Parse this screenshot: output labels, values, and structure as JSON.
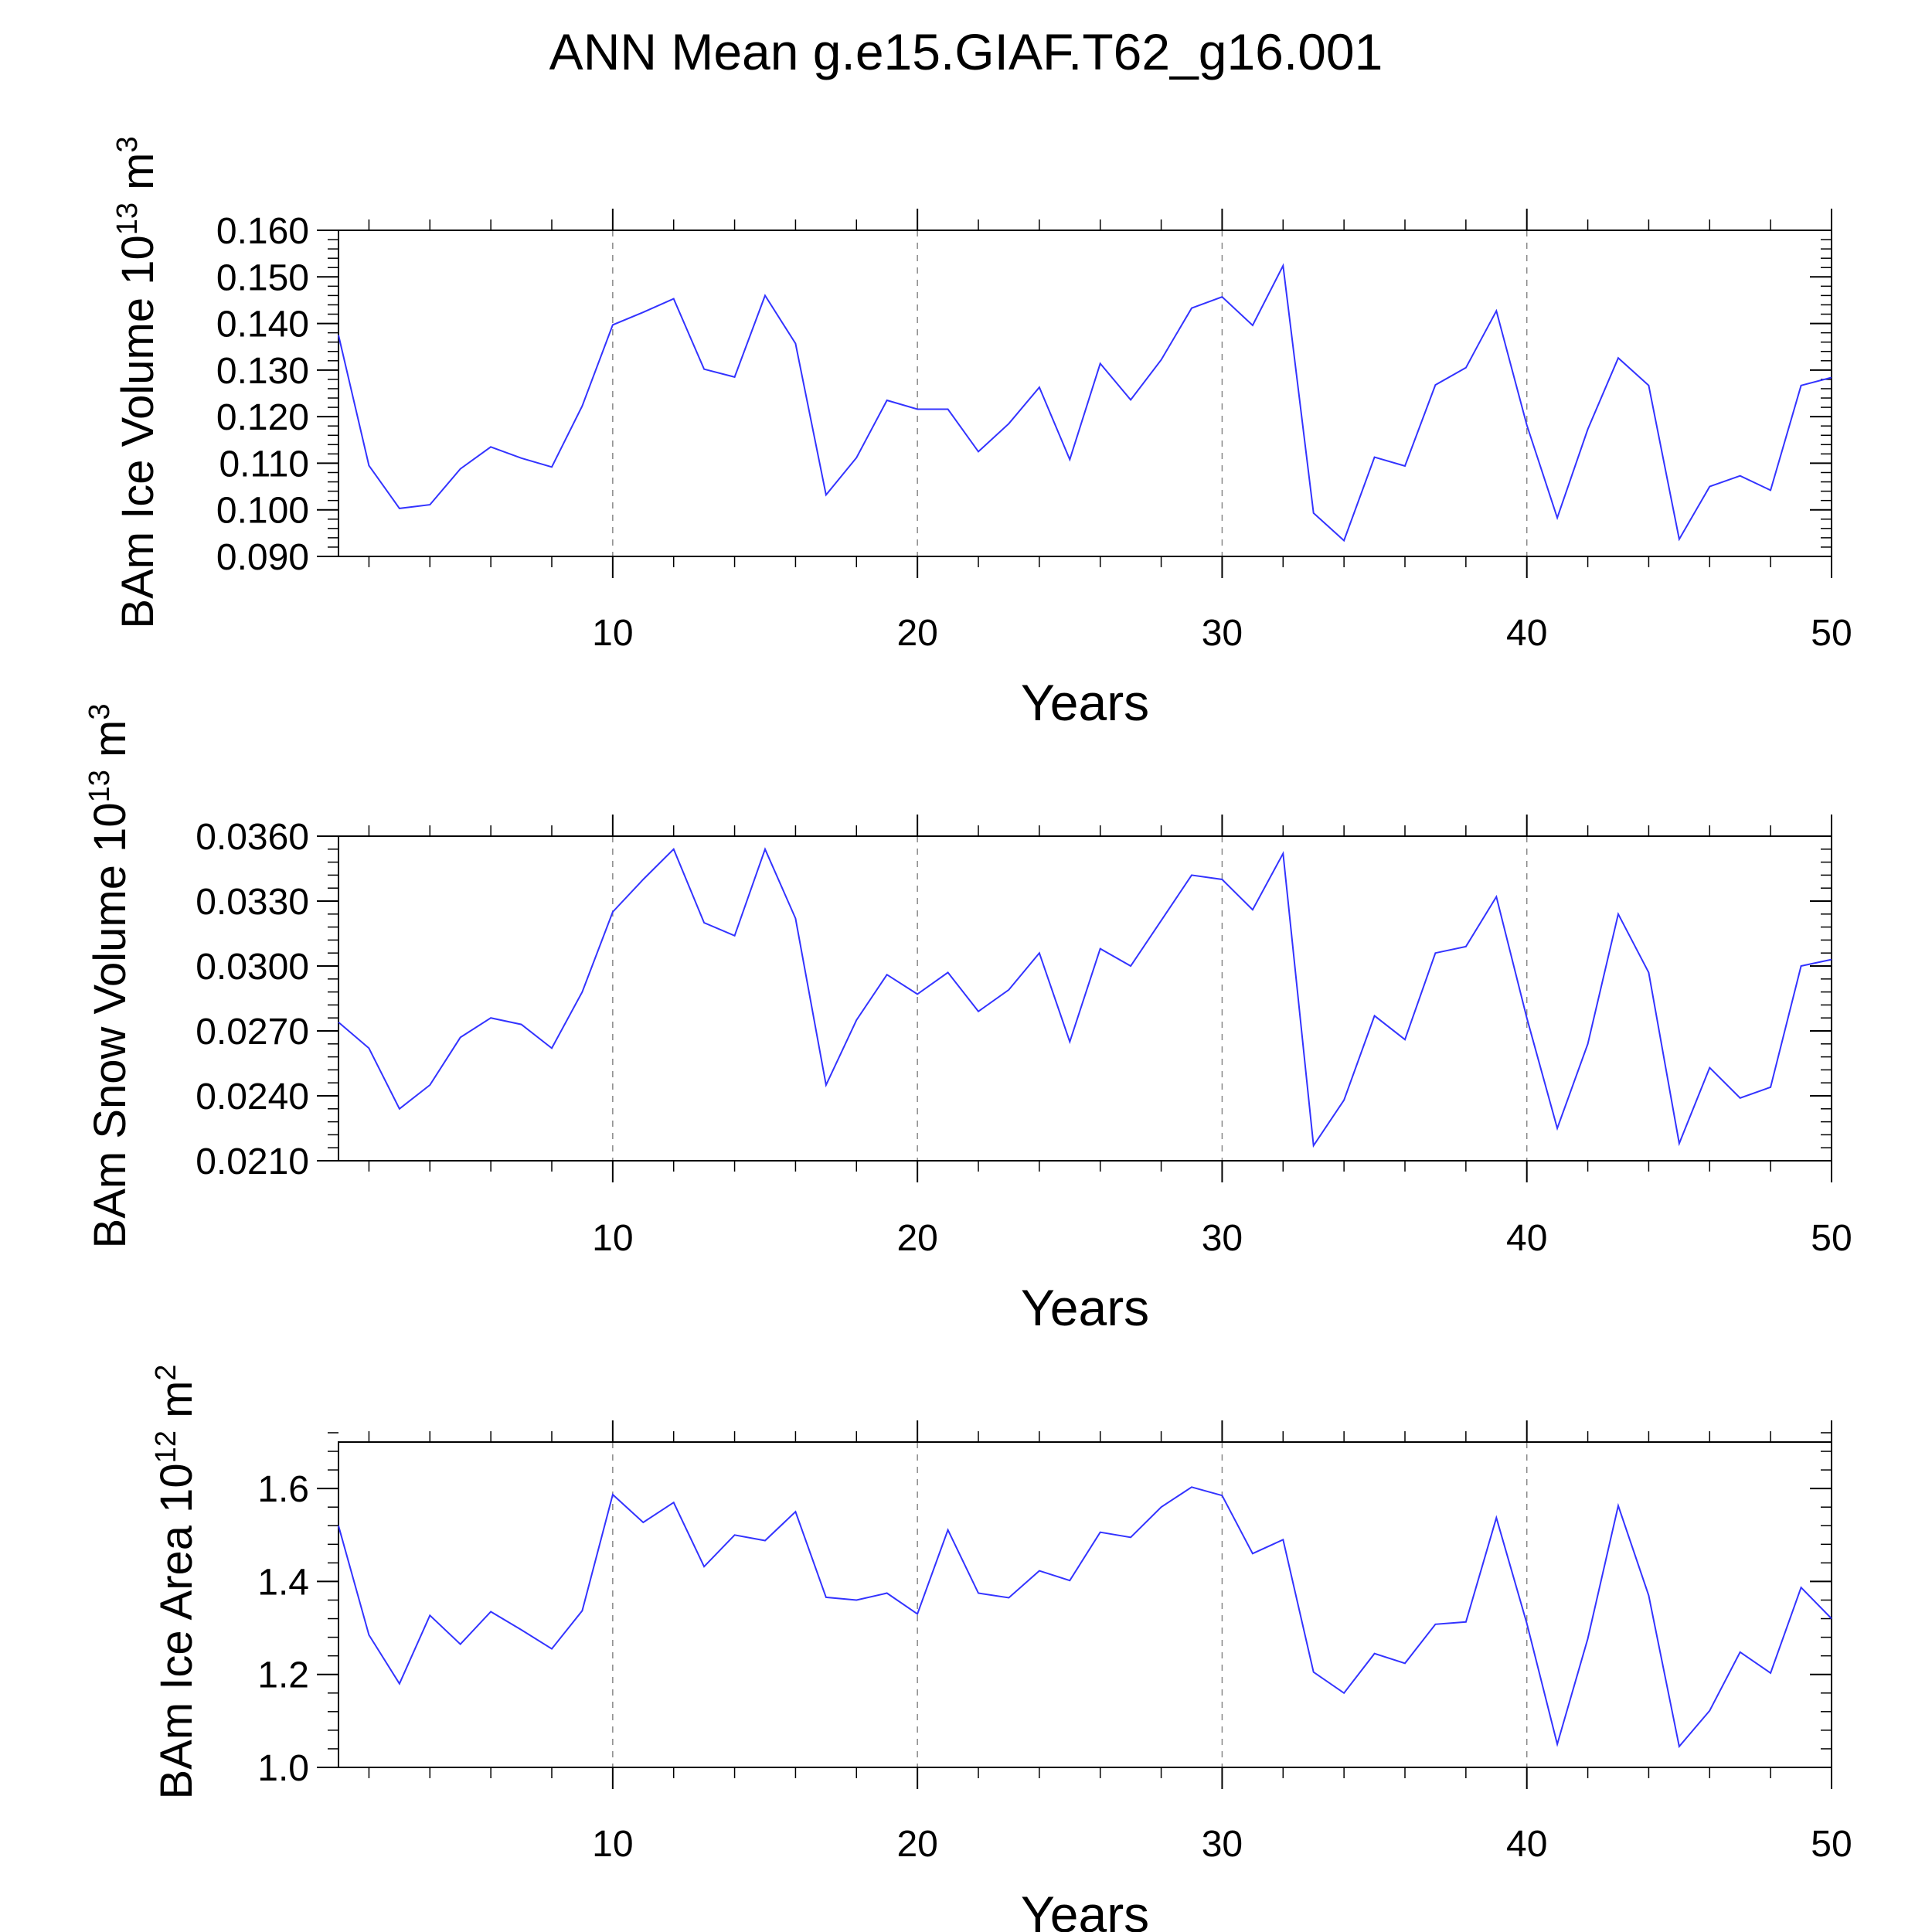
{
  "title": "ANN Mean g.e15.GIAF.T62_g16.001",
  "colors": {
    "line": "#3333ff",
    "axis": "#000000",
    "grid": "#888888",
    "background": "#ffffff"
  },
  "chart_data": [
    {
      "type": "line",
      "title": "ANN Mean g.e15.GIAF.T62_g16.001",
      "xlabel": "Years",
      "ylabel": {
        "main": "BAm Ice Volume 10",
        "exp": "13",
        "unit": " m",
        "unit_exp": "3"
      },
      "xlim": [
        1,
        50
      ],
      "ylim": [
        0.09,
        0.16
      ],
      "xticks": [
        10,
        20,
        30,
        40,
        50
      ],
      "yticks": [
        0.09,
        0.1,
        0.11,
        0.12,
        0.13,
        0.14,
        0.15,
        0.16
      ],
      "ytick_labels": [
        "0.090",
        "0.100",
        "0.110",
        "0.120",
        "0.130",
        "0.140",
        "0.150",
        "0.160"
      ],
      "x": [
        1,
        2,
        3,
        4,
        5,
        6,
        7,
        8,
        9,
        10,
        11,
        12,
        13,
        14,
        15,
        16,
        17,
        18,
        19,
        20,
        21,
        22,
        23,
        24,
        25,
        26,
        27,
        28,
        29,
        30,
        31,
        32,
        33,
        34,
        35,
        36,
        37,
        38,
        39,
        40,
        41,
        42,
        43,
        44,
        45,
        46,
        47,
        48,
        49,
        50
      ],
      "series": [
        {
          "name": "BAm Ice Volume",
          "values": [
            0.1375,
            0.1095,
            0.1003,
            0.1011,
            0.1088,
            0.1135,
            0.1111,
            0.1092,
            0.1223,
            0.1397,
            0.1424,
            0.1453,
            0.1302,
            0.1285,
            0.146,
            0.1357,
            0.1032,
            0.1112,
            0.1235,
            0.1216,
            0.1216,
            0.1125,
            0.1185,
            0.1263,
            0.1108,
            0.1314,
            0.1236,
            0.1322,
            0.1433,
            0.1457,
            0.1396,
            0.1524,
            0.0993,
            0.0934,
            0.1113,
            0.1094,
            0.1268,
            0.1305,
            0.1427,
            0.1182,
            0.0983,
            0.1173,
            0.1326,
            0.1267,
            0.0937,
            0.105,
            0.1073,
            0.1042,
            0.1267,
            0.1284
          ]
        }
      ]
    },
    {
      "type": "line",
      "xlabel": "Years",
      "ylabel": {
        "main": "BAm Snow Volume 10",
        "exp": "13",
        "unit": " m",
        "unit_exp": "3"
      },
      "xlim": [
        1,
        50
      ],
      "ylim": [
        0.021,
        0.036
      ],
      "xticks": [
        10,
        20,
        30,
        40,
        50
      ],
      "yticks": [
        0.021,
        0.024,
        0.027,
        0.03,
        0.033,
        0.036
      ],
      "ytick_labels": [
        "0.0210",
        "0.0240",
        "0.0270",
        "0.0300",
        "0.0330",
        "0.0360"
      ],
      "x": [
        1,
        2,
        3,
        4,
        5,
        6,
        7,
        8,
        9,
        10,
        11,
        12,
        13,
        14,
        15,
        16,
        17,
        18,
        19,
        20,
        21,
        22,
        23,
        24,
        25,
        26,
        27,
        28,
        29,
        30,
        31,
        32,
        33,
        34,
        35,
        36,
        37,
        38,
        39,
        40,
        41,
        42,
        43,
        44,
        45,
        46,
        47,
        48,
        49,
        50
      ],
      "series": [
        {
          "name": "BAm Snow Volume",
          "values": [
            0.0274,
            0.0262,
            0.0234,
            0.0245,
            0.0267,
            0.0276,
            0.0273,
            0.0262,
            0.0288,
            0.0325,
            0.034,
            0.0354,
            0.032,
            0.0314,
            0.0354,
            0.0322,
            0.0245,
            0.0275,
            0.0296,
            0.0287,
            0.0297,
            0.0279,
            0.0289,
            0.0306,
            0.0265,
            0.0308,
            0.03,
            0.0321,
            0.0342,
            0.034,
            0.0326,
            0.0352,
            0.0217,
            0.0238,
            0.0277,
            0.0266,
            0.0306,
            0.0309,
            0.0332,
            0.0276,
            0.0225,
            0.0264,
            0.0324,
            0.0297,
            0.0218,
            0.0253,
            0.0239,
            0.0244,
            0.03,
            0.0303
          ]
        }
      ]
    },
    {
      "type": "line",
      "xlabel": "Years",
      "ylabel": {
        "main": "BAm Ice Area 10",
        "exp": "12",
        "unit": " m",
        "unit_exp": "2"
      },
      "xlim": [
        1,
        50
      ],
      "ylim": [
        1.0,
        1.7
      ],
      "xticks": [
        10,
        20,
        30,
        40,
        50
      ],
      "yticks": [
        1.0,
        1.2,
        1.4,
        1.6
      ],
      "ytick_labels": [
        "1.0",
        "1.2",
        "1.4",
        "1.6"
      ],
      "x": [
        1,
        2,
        3,
        4,
        5,
        6,
        7,
        8,
        9,
        10,
        11,
        12,
        13,
        14,
        15,
        16,
        17,
        18,
        19,
        20,
        21,
        22,
        23,
        24,
        25,
        26,
        27,
        28,
        29,
        30,
        31,
        32,
        33,
        34,
        35,
        36,
        37,
        38,
        39,
        40,
        41,
        42,
        43,
        44,
        45,
        46,
        47,
        48,
        49,
        50
      ],
      "series": [
        {
          "name": "BAm Ice Area",
          "values": [
            1.52,
            1.285,
            1.18,
            1.327,
            1.265,
            1.335,
            1.296,
            1.255,
            1.337,
            1.587,
            1.527,
            1.57,
            1.432,
            1.5,
            1.488,
            1.55,
            1.366,
            1.36,
            1.375,
            1.33,
            1.511,
            1.375,
            1.365,
            1.423,
            1.402,
            1.506,
            1.495,
            1.56,
            1.603,
            1.585,
            1.46,
            1.49,
            1.205,
            1.16,
            1.245,
            1.224,
            1.308,
            1.313,
            1.537,
            1.31,
            1.05,
            1.277,
            1.563,
            1.37,
            1.045,
            1.122,
            1.248,
            1.203,
            1.387,
            1.32
          ]
        }
      ]
    }
  ]
}
